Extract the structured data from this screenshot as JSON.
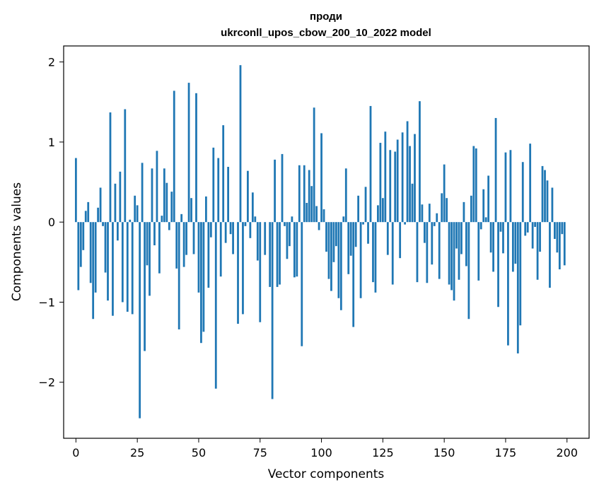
{
  "chart_data": {
    "type": "bar",
    "title_line1": "проди",
    "title_line2": "ukrconll_upos_cbow_200_10_2022 model",
    "xlabel": "Vector components",
    "ylabel": "Components values",
    "xlim": [
      -5,
      209
    ],
    "ylim": [
      -2.7,
      2.2
    ],
    "xticks": [
      0,
      25,
      50,
      75,
      100,
      125,
      150,
      175,
      200
    ],
    "yticks": [
      -2,
      -1,
      0,
      1,
      2
    ],
    "ytick_labels": [
      "−2",
      "−1",
      "0",
      "1",
      "2"
    ],
    "bar_color": "#1f77b4",
    "grid": false,
    "values": [
      0.8,
      -0.85,
      -0.56,
      -0.35,
      0.14,
      0.25,
      -0.76,
      -1.21,
      -0.88,
      0.18,
      0.43,
      -0.05,
      -0.63,
      -0.98,
      1.37,
      -1.17,
      0.48,
      -0.23,
      0.63,
      -1.0,
      1.41,
      -1.12,
      0.03,
      -1.15,
      0.33,
      0.21,
      -2.45,
      0.74,
      -1.61,
      -0.54,
      -0.92,
      0.67,
      -0.29,
      0.89,
      -0.64,
      0.08,
      0.67,
      0.49,
      -0.1,
      0.38,
      1.64,
      -0.58,
      -1.34,
      0.1,
      -0.56,
      -0.41,
      1.74,
      0.3,
      -0.4,
      1.61,
      -0.88,
      -1.51,
      -1.37,
      0.32,
      -0.82,
      -0.19,
      0.93,
      -2.08,
      0.8,
      -0.68,
      1.21,
      -0.26,
      0.69,
      -0.15,
      -0.4,
      0.0,
      -1.27,
      1.96,
      -1.15,
      -0.05,
      0.64,
      -0.2,
      0.37,
      0.07,
      -0.48,
      -1.25,
      0.0,
      -0.41,
      0.0,
      -0.81,
      -2.21,
      0.78,
      -0.81,
      -0.78,
      0.85,
      -0.05,
      -0.46,
      -0.3,
      0.07,
      -0.69,
      -0.68,
      0.71,
      -1.55,
      0.71,
      0.24,
      0.65,
      0.45,
      1.43,
      0.2,
      -0.1,
      1.11,
      0.16,
      -0.37,
      -0.71,
      -0.86,
      -0.5,
      -0.3,
      -0.95,
      -1.1,
      0.07,
      0.67,
      -0.65,
      -0.42,
      -1.31,
      -0.31,
      0.33,
      -0.95,
      -0.03,
      0.44,
      -0.27,
      1.45,
      -0.75,
      -0.88,
      0.21,
      0.99,
      0.3,
      1.13,
      -0.41,
      0.9,
      -0.78,
      0.88,
      1.03,
      -0.45,
      1.12,
      -0.03,
      1.26,
      0.95,
      0.48,
      1.1,
      -0.75,
      1.51,
      0.22,
      -0.26,
      -0.76,
      0.23,
      -0.53,
      -0.05,
      0.11,
      -0.71,
      0.36,
      0.72,
      0.3,
      -0.78,
      -0.85,
      -0.98,
      -0.33,
      -0.72,
      -0.4,
      0.25,
      -0.55,
      -1.21,
      0.33,
      0.95,
      0.92,
      -0.73,
      -0.09,
      0.41,
      0.06,
      0.58,
      -0.38,
      -0.62,
      1.3,
      -1.06,
      -0.12,
      -0.39,
      0.87,
      -1.54,
      0.9,
      -0.62,
      -0.52,
      -1.64,
      -1.29,
      0.75,
      -0.17,
      -0.13,
      0.98,
      -0.33,
      -0.06,
      -0.72,
      -0.37,
      0.7,
      0.65,
      0.52,
      -0.82,
      0.43,
      -0.21,
      -0.38,
      -0.59,
      -0.15,
      -0.54
    ]
  }
}
